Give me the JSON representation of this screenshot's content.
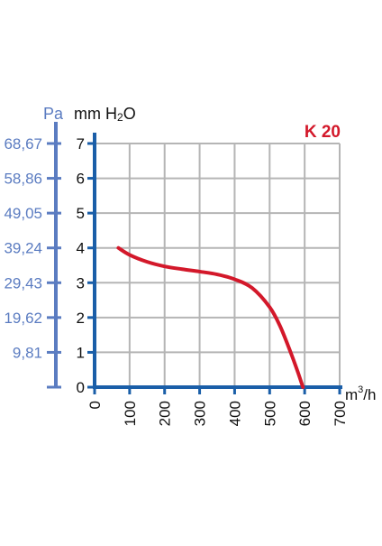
{
  "chart_data": {
    "type": "line",
    "title": "K 20",
    "title_color": "#d3182a",
    "xlabel": "m³/h",
    "xlabel_base": "m",
    "xlabel_sup": "3",
    "xlabel_suffix": "/h",
    "ylabel": "mm H₂O",
    "ylabel_base": "mm H",
    "ylabel_sub": "2",
    "ylabel_suffix": "O",
    "ylabel2": "Pa",
    "xlim": [
      0,
      700
    ],
    "ylim": [
      0,
      7
    ],
    "grid": true,
    "x_ticks": [
      "0",
      "100",
      "200",
      "300",
      "400",
      "500",
      "600",
      "700"
    ],
    "y_ticks": [
      "0",
      "1",
      "2",
      "3",
      "4",
      "5",
      "6",
      "7"
    ],
    "y2_ticks": [
      "68,67",
      "58,86",
      "49,05",
      "39,24",
      "29,43",
      "19,62",
      "9,81"
    ],
    "axis_color": "#1a5ea8",
    "pa_color": "#5b7cc1",
    "grid_color": "#b5b5b5",
    "series": [
      {
        "color": "#d3182a",
        "x": [
          68,
          100,
          150,
          200,
          250,
          300,
          350,
          400,
          450,
          500,
          530,
          560,
          580,
          595
        ],
        "y": [
          4.0,
          3.8,
          3.6,
          3.47,
          3.39,
          3.32,
          3.24,
          3.1,
          2.85,
          2.3,
          1.75,
          1.0,
          0.45,
          0.0
        ]
      }
    ]
  }
}
